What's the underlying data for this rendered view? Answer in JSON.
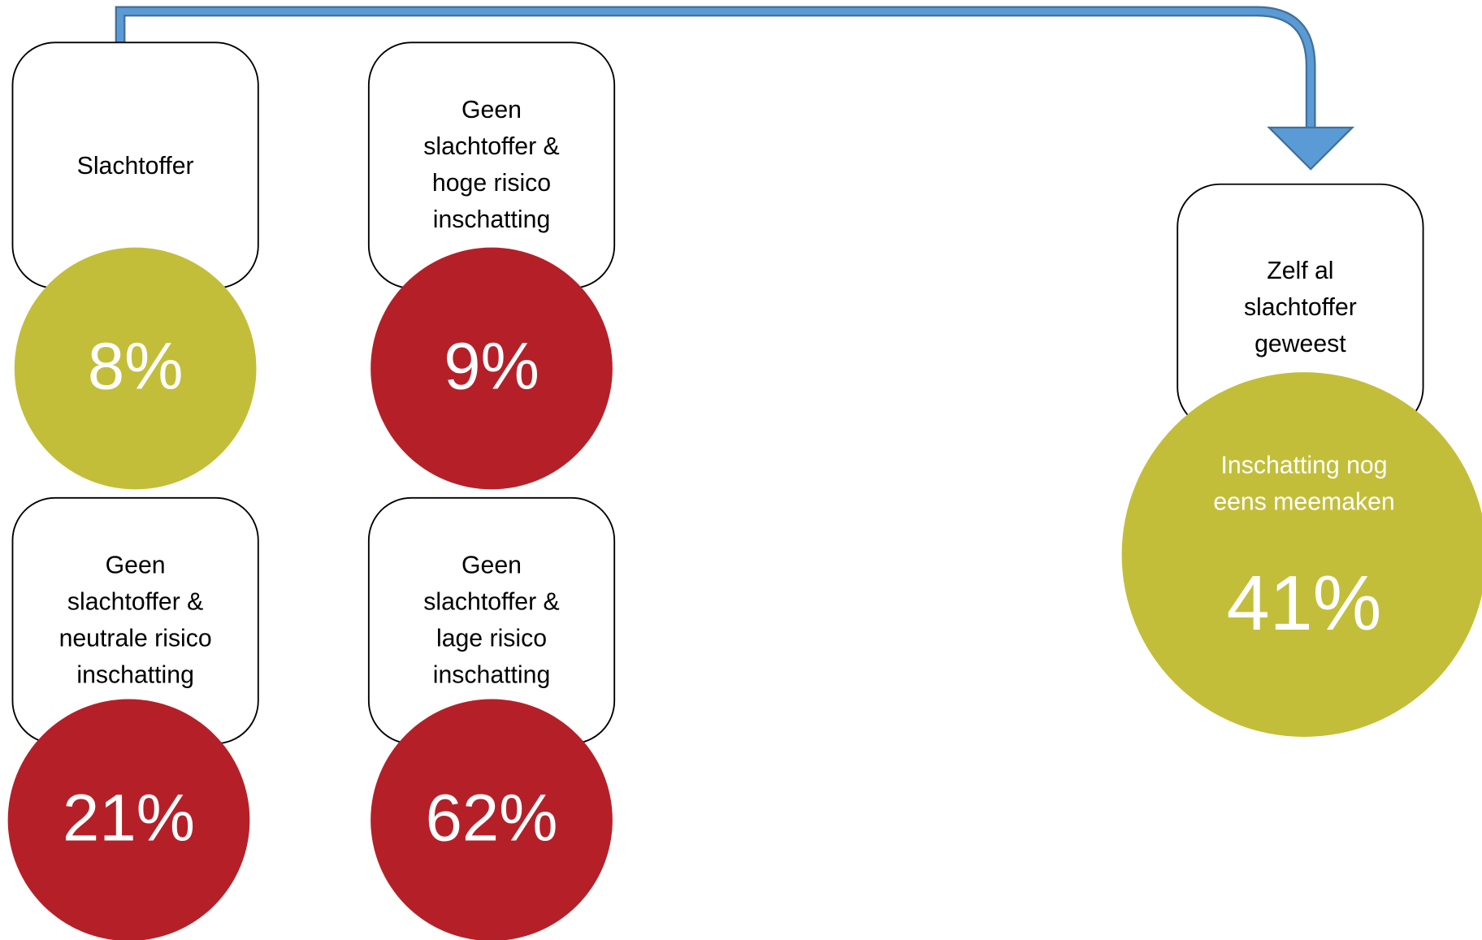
{
  "nodes": [
    {
      "label": [
        "Slachtoffer"
      ],
      "value": "8%",
      "color": "#c3be3a"
    },
    {
      "label": [
        "Geen",
        "slachtoffer &",
        "hoge risico",
        "inschatting"
      ],
      "value": "9%",
      "color": "#b52028"
    },
    {
      "label": [
        "Geen",
        "slachtoffer &",
        "neutrale risico",
        "inschatting"
      ],
      "value": "21%",
      "color": "#b52028"
    },
    {
      "label": [
        "Geen",
        "slachtoffer &",
        "lage risico",
        "inschatting"
      ],
      "value": "62%",
      "color": "#b52028"
    },
    {
      "label": [
        "Zelf al",
        "slachtoffer",
        "geweest"
      ],
      "sublabel": [
        "Inschatting nog",
        "eens meemaken"
      ],
      "value": "41%",
      "color": "#c3be3a"
    }
  ]
}
